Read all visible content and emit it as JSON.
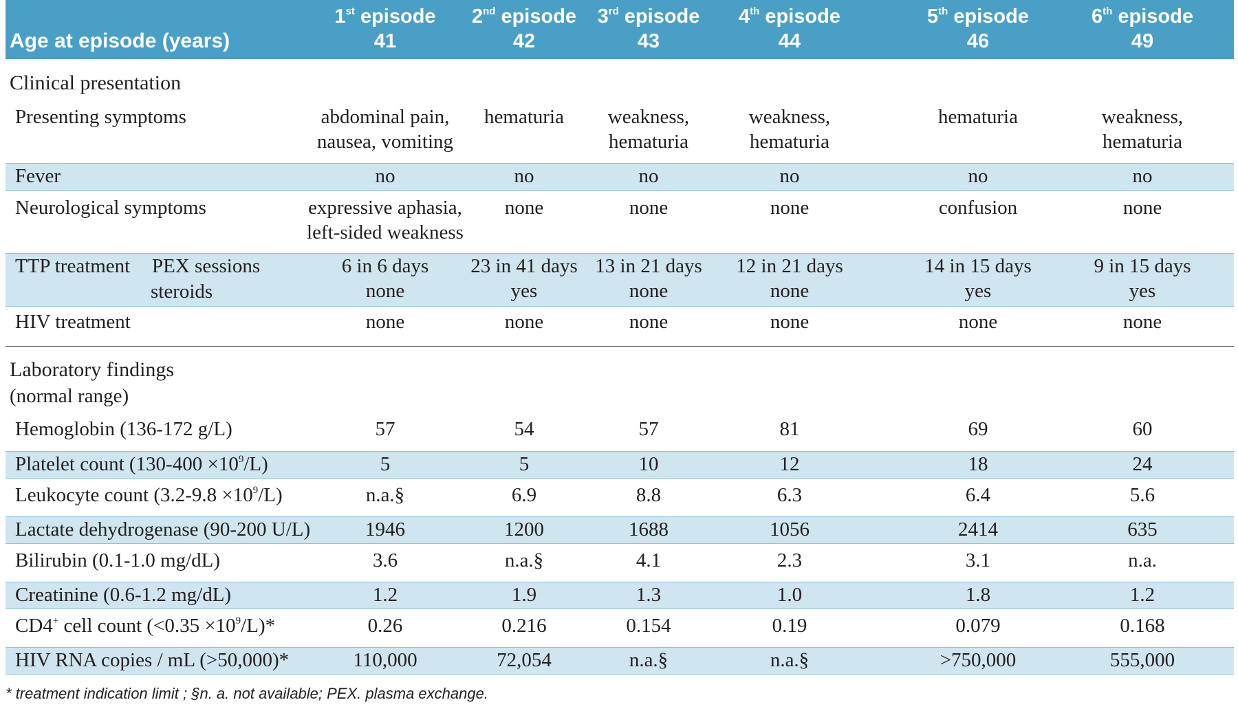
{
  "header": {
    "age_label": "Age at episode (years)",
    "episodes": [
      {
        "num": "1",
        "suffix": "st",
        "word": "episode",
        "age": "41"
      },
      {
        "num": "2",
        "suffix": "nd",
        "word": "episode",
        "age": "42"
      },
      {
        "num": "3",
        "suffix": "rd",
        "word": "episode",
        "age": "43"
      },
      {
        "num": "4",
        "suffix": "th",
        "word": "episode",
        "age": "44"
      },
      {
        "num": "5",
        "suffix": "th",
        "word": "episode",
        "age": "46"
      },
      {
        "num": "6",
        "suffix": "th",
        "word": "episode",
        "age": "49"
      }
    ]
  },
  "clinical": {
    "title": "Clinical presentation",
    "presenting": {
      "label": "Presenting symptoms",
      "values": [
        [
          "abdominal pain,",
          "nausea, vomiting"
        ],
        [
          "hematuria",
          ""
        ],
        [
          "weakness,",
          "hematuria"
        ],
        [
          "weakness,",
          "hematuria"
        ],
        [
          "hematuria",
          ""
        ],
        [
          "weakness,",
          "hematuria"
        ]
      ]
    },
    "fever": {
      "label": "Fever",
      "values": [
        "no",
        "no",
        "no",
        "no",
        "no",
        "no"
      ]
    },
    "neuro": {
      "label": "Neurological symptoms",
      "values": [
        [
          "expressive aphasia,",
          "left-sided weakness"
        ],
        [
          "none",
          ""
        ],
        [
          "none",
          ""
        ],
        [
          "none",
          ""
        ],
        [
          "confusion",
          ""
        ],
        [
          "none",
          ""
        ]
      ]
    },
    "ttp": {
      "label": "TTP treatment",
      "sub1": "PEX sessions",
      "sub2": "steroids",
      "pex": [
        "6 in 6 days",
        "23 in 41 days",
        "13 in 21 days",
        "12 in 21 days",
        "14 in 15 days",
        "9 in 15 days"
      ],
      "steroids": [
        "none",
        "yes",
        "none",
        "none",
        "yes",
        "yes"
      ]
    },
    "hiv_treatment": {
      "label": "HIV treatment",
      "values": [
        "none",
        "none",
        "none",
        "none",
        "none",
        "none"
      ]
    }
  },
  "lab": {
    "title": "Laboratory findings",
    "subtitle": "(normal range)",
    "rows": [
      {
        "label": "Hemoglobin (136-172 g/L)",
        "values": [
          "57",
          "54",
          "57",
          "81",
          "69",
          "60"
        ]
      },
      {
        "label_pre": "Platelet count (130-400 ×10",
        "label_sup": "9",
        "label_post": "/L)",
        "values": [
          "5",
          "5",
          "10",
          "12",
          "18",
          "24"
        ]
      },
      {
        "label_pre": "Leukocyte count (3.2-9.8 ×10",
        "label_sup": "9",
        "label_post": "/L)",
        "values": [
          "n.a.§",
          "6.9",
          "8.8",
          "6.3",
          "6.4",
          "5.6"
        ]
      },
      {
        "label": "Lactate dehydrogenase (90-200 U/L)",
        "values": [
          "1946",
          "1200",
          "1688",
          "1056",
          "2414",
          "635"
        ]
      },
      {
        "label": "Bilirubin (0.1-1.0 mg/dL)",
        "values": [
          "3.6",
          "n.a.§",
          "4.1",
          "2.3",
          "3.1",
          "n.a."
        ]
      },
      {
        "label": "Creatinine (0.6-1.2 mg/dL)",
        "values": [
          "1.2",
          "1.9",
          "1.3",
          "1.0",
          "1.8",
          "1.2"
        ]
      },
      {
        "label_pre": "CD4",
        "label_sup": "+",
        "label_mid": " cell count (<0.35 ×10",
        "label_sup2": "9",
        "label_post": "/L)*",
        "values": [
          "0.26",
          "0.216",
          "0.154",
          "0.19",
          "0.079",
          "0.168"
        ]
      },
      {
        "label": "HIV RNA copies / mL (>50,000)*",
        "values": [
          "110,000",
          "72,054",
          "n.a.§",
          "n.a.§",
          ">750,000",
          "555,000"
        ]
      }
    ]
  },
  "footnote": "* treatment indication limit ; §n. a.  not available; PEX. plasma exchange."
}
